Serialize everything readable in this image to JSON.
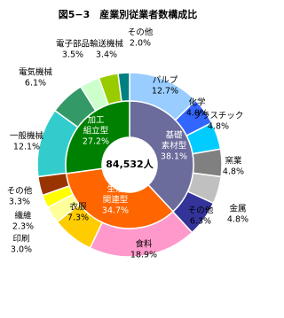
{
  "chart_data": {
    "type": "nested-donut",
    "title": "図5−3　産業別従業者数構成比",
    "center_label": "84,532人",
    "inner": {
      "labels": [
        [
          "基礎",
          "素材型"
        ],
        [
          "生活",
          "関連型"
        ],
        [
          "加工",
          "組立型"
        ]
      ],
      "values": [
        38.1,
        34.7,
        27.2
      ],
      "value_labels": [
        "38.1%",
        "34.7%",
        "27.2%"
      ],
      "colors": [
        "#6b6b9c",
        "#ff6600",
        "#008000"
      ]
    },
    "outer": {
      "labels": [
        "パルプ",
        "化学",
        "プラスチック",
        "窯業",
        "金属",
        "その他",
        "食料",
        "衣服",
        "印刷",
        "繊維",
        "その他",
        "一般機械",
        "電気機械",
        "電子部品",
        "輸送機械",
        "その他"
      ],
      "values": [
        12.7,
        4.8,
        4.8,
        4.8,
        4.8,
        6.3,
        18.9,
        7.3,
        3.0,
        2.3,
        3.3,
        12.1,
        6.1,
        3.5,
        3.4,
        2.0
      ],
      "value_labels": [
        "12.7%",
        "4.8%",
        "4.8%",
        "4.8%",
        "4.8%",
        "6.3%",
        "18.9%",
        "7.3%",
        "3.0%",
        "2.3%",
        "3.3%",
        "12.1%",
        "6.1%",
        "3.5%",
        "3.4%",
        "2.0%"
      ],
      "colors": [
        "#99ccff",
        "#3366ff",
        "#00ccff",
        "#808080",
        "#c0c0c0",
        "#333399",
        "#ff99cc",
        "#ffcc00",
        "#ffff99",
        "#ffff00",
        "#993300",
        "#33cccc",
        "#339966",
        "#ccffcc",
        "#99cc00",
        "#008080"
      ]
    }
  }
}
